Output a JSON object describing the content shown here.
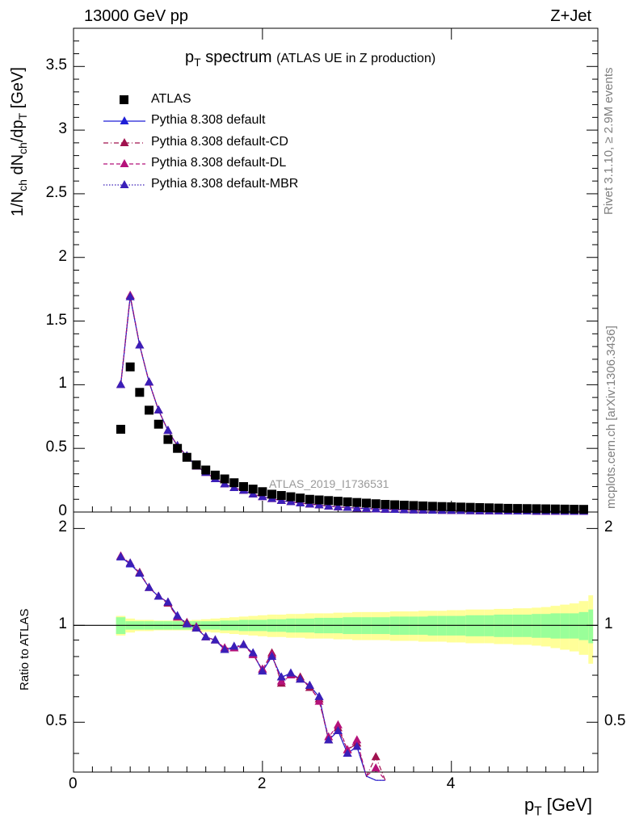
{
  "header": {
    "left": "13000 GeV pp",
    "right": "Z+Jet"
  },
  "side_texts": {
    "rivet": "Rivet 3.1.10, ≥ 2.9M events",
    "mcplots": "mcplots.cern.ch [arXiv:1306.3436]"
  },
  "analysis_label": "ATLAS_2019_I1736531",
  "chart_data": {
    "type": "scatter",
    "title": {
      "main": "p",
      "main_sub": "T",
      "main_rest": "spectrum",
      "sub": "(ATLAS UE in Z production)"
    },
    "xlabel": "p_T [GeV]",
    "ylabel": "1/N_ch dN_ch/dp_T [GeV]",
    "ratio_ylabel": "Ratio to ATLAS",
    "xlim": [
      0,
      5.55
    ],
    "ylim": [
      0,
      3.8
    ],
    "ratio_ylim": [
      0.35,
      2.25
    ],
    "xticks": [
      "0",
      "2",
      "4"
    ],
    "yticks": [
      "0",
      "0.5",
      "1",
      "1.5",
      "2",
      "2.5",
      "3",
      "3.5"
    ],
    "ratio_yticks": [
      "0.5",
      "1",
      "2"
    ],
    "legend_position": "top-left",
    "x": [
      0.5,
      0.6,
      0.7,
      0.8,
      0.9,
      1.0,
      1.1,
      1.2,
      1.3,
      1.4,
      1.5,
      1.6,
      1.7,
      1.8,
      1.9,
      2.0,
      2.1,
      2.2,
      2.3,
      2.4,
      2.5,
      2.6,
      2.7,
      2.8,
      2.9,
      3.0,
      3.1,
      3.2,
      3.3,
      3.4,
      3.5,
      3.6,
      3.7,
      3.8,
      3.9,
      4.0,
      4.1,
      4.2,
      4.3,
      4.4,
      4.5,
      4.6,
      4.7,
      4.8,
      4.9,
      5.0,
      5.1,
      5.2,
      5.3,
      5.4
    ],
    "series": [
      {
        "name": "ATLAS",
        "marker": "square",
        "color": "#000000",
        "values": [
          0.65,
          1.14,
          0.94,
          0.8,
          0.69,
          0.57,
          0.5,
          0.43,
          0.37,
          0.33,
          0.29,
          0.26,
          0.23,
          0.2,
          0.18,
          0.16,
          0.14,
          0.13,
          0.12,
          0.11,
          0.1,
          0.095,
          0.09,
          0.085,
          0.08,
          0.075,
          0.07,
          0.065,
          0.06,
          0.057,
          0.054,
          0.051,
          0.048,
          0.045,
          0.043,
          0.041,
          0.039,
          0.037,
          0.035,
          0.033,
          0.031,
          0.029,
          0.028,
          0.027,
          0.026,
          0.025,
          0.024,
          0.023,
          0.022,
          0.021
        ]
      },
      {
        "name": "Pythia 8.308 default",
        "marker": "triangle",
        "line": "solid",
        "color": "#1f1fd6",
        "values": [
          1.0,
          1.69,
          1.31,
          1.02,
          0.8,
          0.64,
          0.52,
          0.44,
          0.36,
          0.31,
          0.26,
          0.22,
          0.19,
          0.17,
          0.14,
          0.12,
          0.105,
          0.09,
          0.08,
          0.07,
          0.062,
          0.055,
          0.045,
          0.04,
          0.035,
          0.03,
          0.027,
          0.024,
          0.021,
          0.019,
          0.017,
          0.015,
          0.014,
          0.013,
          0.012,
          0.011,
          0.01,
          0.009,
          0.008,
          0.008,
          0.007,
          0.007,
          0.006,
          0.006,
          0.005,
          0.005,
          0.005,
          0.004,
          0.004,
          0.004
        ]
      },
      {
        "name": "Pythia 8.308 default-CD",
        "marker": "triangle",
        "line": "dashdot",
        "color": "#a0114e",
        "values": [
          1.0,
          1.7,
          1.31,
          1.02,
          0.8,
          0.64,
          0.52,
          0.44,
          0.36,
          0.31,
          0.26,
          0.22,
          0.19,
          0.17,
          0.14,
          0.12,
          0.104,
          0.09,
          0.08,
          0.07,
          0.062,
          0.055,
          0.045,
          0.04,
          0.035,
          0.03,
          0.027,
          0.024,
          0.021,
          0.019,
          0.017,
          0.015,
          0.014,
          0.013,
          0.012,
          0.011,
          0.01,
          0.009,
          0.008,
          0.008,
          0.007,
          0.007,
          0.006,
          0.006,
          0.005,
          0.005,
          0.005,
          0.004,
          0.004,
          0.004
        ]
      },
      {
        "name": "Pythia 8.308 default-DL",
        "marker": "triangle",
        "line": "dashed",
        "color": "#b5127a",
        "values": [
          1.0,
          1.7,
          1.31,
          1.02,
          0.8,
          0.64,
          0.52,
          0.44,
          0.36,
          0.31,
          0.26,
          0.22,
          0.19,
          0.17,
          0.14,
          0.12,
          0.104,
          0.09,
          0.08,
          0.07,
          0.062,
          0.055,
          0.045,
          0.04,
          0.035,
          0.03,
          0.027,
          0.024,
          0.021,
          0.019,
          0.017,
          0.015,
          0.014,
          0.013,
          0.012,
          0.011,
          0.01,
          0.009,
          0.008,
          0.008,
          0.007,
          0.007,
          0.006,
          0.006,
          0.005,
          0.005,
          0.005,
          0.004,
          0.004,
          0.004
        ]
      },
      {
        "name": "Pythia 8.308 default-MBR",
        "marker": "triangle",
        "line": "dotted",
        "color": "#3a1fb8",
        "values": [
          1.0,
          1.69,
          1.31,
          1.02,
          0.8,
          0.64,
          0.52,
          0.44,
          0.36,
          0.31,
          0.26,
          0.22,
          0.19,
          0.17,
          0.14,
          0.12,
          0.105,
          0.09,
          0.08,
          0.07,
          0.062,
          0.055,
          0.045,
          0.04,
          0.035,
          0.03,
          0.027,
          0.024,
          0.021,
          0.019,
          0.017,
          0.015,
          0.014,
          0.013,
          0.012,
          0.011,
          0.01,
          0.009,
          0.008,
          0.008,
          0.007,
          0.007,
          0.006,
          0.006,
          0.005,
          0.005,
          0.005,
          0.004,
          0.004,
          0.004
        ]
      }
    ],
    "ratio": {
      "x": [
        0.5,
        0.6,
        0.7,
        0.8,
        0.9,
        1.0,
        1.1,
        1.2,
        1.3,
        1.4,
        1.5,
        1.6,
        1.7,
        1.8,
        1.9,
        2.0,
        2.1,
        2.2,
        2.3,
        2.4,
        2.5,
        2.6,
        2.7,
        2.8,
        2.9,
        3.0,
        3.1,
        3.2,
        3.3
      ],
      "default": [
        1.63,
        1.55,
        1.45,
        1.31,
        1.23,
        1.18,
        1.07,
        1.01,
        0.98,
        0.92,
        0.9,
        0.84,
        0.85,
        0.87,
        0.82,
        0.72,
        0.8,
        0.69,
        0.71,
        0.68,
        0.65,
        0.6,
        0.44,
        0.47,
        0.4,
        0.42,
        0.34,
        0.33,
        0.33
      ],
      "cd": [
        1.64,
        1.56,
        1.46,
        1.31,
        1.23,
        1.17,
        1.06,
        1.02,
        0.98,
        0.92,
        0.9,
        0.85,
        0.85,
        0.87,
        0.81,
        0.73,
        0.82,
        0.66,
        0.7,
        0.69,
        0.64,
        0.59,
        0.44,
        0.48,
        0.41,
        0.43,
        0.34,
        0.39,
        0.33
      ],
      "dl": [
        1.64,
        1.56,
        1.45,
        1.31,
        1.23,
        1.18,
        1.06,
        1.01,
        0.99,
        0.92,
        0.9,
        0.85,
        0.85,
        0.87,
        0.81,
        0.73,
        0.81,
        0.67,
        0.7,
        0.68,
        0.65,
        0.58,
        0.45,
        0.49,
        0.41,
        0.44,
        0.34,
        0.36,
        0.33
      ],
      "mbr": [
        1.63,
        1.56,
        1.45,
        1.31,
        1.23,
        1.18,
        1.07,
        1.01,
        0.98,
        0.92,
        0.9,
        0.84,
        0.86,
        0.87,
        0.82,
        0.72,
        0.8,
        0.69,
        0.71,
        0.68,
        0.65,
        0.6,
        0.44,
        0.47,
        0.4,
        0.42,
        0.34,
        0.33,
        0.33
      ],
      "band_x": [
        0.45,
        0.55,
        0.65,
        0.75,
        0.85,
        0.95,
        1.05,
        1.15,
        1.25,
        1.35,
        1.45,
        1.55,
        1.65,
        1.75,
        1.85,
        1.95,
        2.05,
        2.15,
        2.25,
        2.35,
        2.45,
        2.55,
        2.65,
        2.75,
        2.85,
        2.95,
        3.05,
        3.15,
        3.25,
        3.35,
        3.45,
        3.55,
        3.65,
        3.75,
        3.85,
        3.95,
        4.05,
        4.15,
        4.25,
        4.35,
        4.45,
        4.55,
        4.65,
        4.75,
        4.85,
        4.95,
        5.05,
        5.15,
        5.25,
        5.35,
        5.45
      ],
      "green": [
        0.06,
        0.03,
        0.03,
        0.03,
        0.03,
        0.03,
        0.03,
        0.03,
        0.03,
        0.03,
        0.03,
        0.035,
        0.035,
        0.04,
        0.04,
        0.04,
        0.045,
        0.045,
        0.05,
        0.05,
        0.05,
        0.055,
        0.055,
        0.055,
        0.06,
        0.06,
        0.06,
        0.06,
        0.06,
        0.065,
        0.065,
        0.065,
        0.065,
        0.07,
        0.07,
        0.07,
        0.07,
        0.075,
        0.075,
        0.075,
        0.08,
        0.08,
        0.08,
        0.08,
        0.085,
        0.085,
        0.09,
        0.09,
        0.09,
        0.1,
        0.12
      ],
      "yellow": [
        0.07,
        0.05,
        0.04,
        0.04,
        0.035,
        0.035,
        0.035,
        0.035,
        0.04,
        0.045,
        0.05,
        0.055,
        0.06,
        0.065,
        0.07,
        0.075,
        0.08,
        0.08,
        0.085,
        0.085,
        0.09,
        0.09,
        0.09,
        0.095,
        0.095,
        0.1,
        0.1,
        0.1,
        0.1,
        0.105,
        0.105,
        0.105,
        0.11,
        0.11,
        0.11,
        0.115,
        0.115,
        0.12,
        0.12,
        0.12,
        0.125,
        0.125,
        0.13,
        0.13,
        0.135,
        0.14,
        0.15,
        0.16,
        0.17,
        0.19,
        0.24
      ]
    },
    "band_colors": {
      "inner": "#99ff99",
      "outer": "#ffff99"
    }
  }
}
